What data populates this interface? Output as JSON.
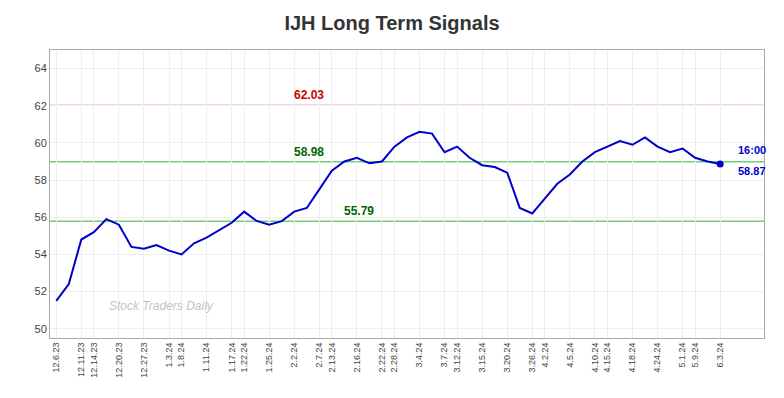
{
  "chart_data": {
    "type": "line",
    "title": "IJH Long Term Signals",
    "categories": [
      "12.6.23",
      null,
      "12.11.23",
      "12.14.23",
      null,
      "12.20.23",
      null,
      "12.27.23",
      null,
      "1.3.24",
      "1.8.24",
      null,
      "1.11.24",
      null,
      "1.17.24",
      "1.22.24",
      null,
      "1.25.24",
      null,
      "2.2.24",
      null,
      "2.7.24",
      "2.13.24",
      null,
      "2.16.24",
      null,
      "2.22.24",
      "2.28.24",
      null,
      "3.4.24",
      null,
      "3.7.24",
      "3.12.24",
      null,
      "3.15.24",
      null,
      "3.20.24",
      null,
      "3.26.24",
      "4.2.24",
      null,
      "4.5.24",
      null,
      "4.10.24",
      "4.15.24",
      null,
      "4.18.24",
      null,
      "4.24.24",
      null,
      "5.1.24",
      "5.9.24",
      null,
      "6.3.24"
    ],
    "values": [
      51.5,
      52.4,
      54.8,
      55.2,
      55.9,
      55.6,
      54.4,
      54.3,
      54.5,
      54.2,
      54.0,
      54.6,
      54.9,
      55.3,
      55.7,
      56.3,
      55.8,
      55.6,
      55.79,
      56.3,
      56.5,
      57.5,
      58.5,
      59.0,
      59.2,
      58.9,
      59.0,
      59.8,
      60.3,
      60.6,
      60.5,
      59.5,
      59.8,
      59.2,
      58.8,
      58.7,
      58.4,
      56.5,
      56.2,
      57.0,
      57.8,
      58.3,
      59.0,
      59.5,
      59.8,
      60.1,
      59.9,
      60.3,
      59.8,
      59.5,
      59.7,
      59.2,
      59.0,
      58.87
    ],
    "color": "#0000cc",
    "reference_lines": [
      {
        "value": 62.03,
        "color": "#ffaaaa",
        "label_color": "#cc0000"
      },
      {
        "value": 58.98,
        "color": "#77cc77",
        "label_color": "#006600"
      },
      {
        "value": 55.79,
        "color": "#77cc77",
        "label_color": "#006600"
      }
    ],
    "end_labels": [
      "16:00",
      "58.87"
    ],
    "end_label_color": "#0000cc",
    "watermark": "Stock Traders Daily",
    "watermark_color": "#aaaaaa",
    "ylim": [
      49.5,
      65.0
    ],
    "yticks": [
      50,
      52,
      54,
      56,
      58,
      60,
      62,
      64
    ],
    "grid": true
  }
}
